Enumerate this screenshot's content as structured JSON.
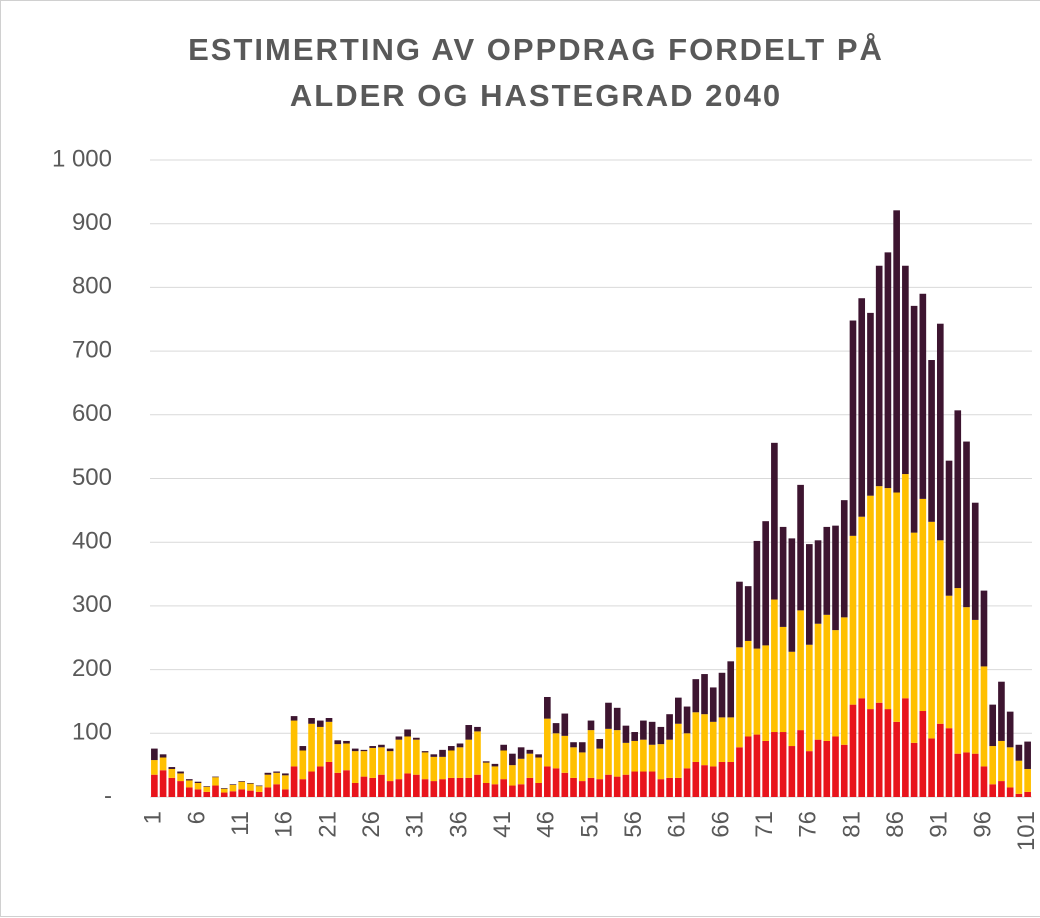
{
  "chart_data": {
    "type": "stacked_bar",
    "title": [
      "ESTIMERTING AV OPPDRAG  FORDELT PÅ",
      "ALDER OG HASTEGRAD 2040"
    ],
    "categories": [
      "1",
      null,
      null,
      null,
      null,
      "6",
      null,
      null,
      null,
      null,
      "11",
      null,
      null,
      null,
      null,
      "16",
      null,
      null,
      null,
      null,
      "21",
      null,
      null,
      null,
      null,
      "26",
      null,
      null,
      null,
      null,
      "31",
      null,
      null,
      null,
      null,
      "36",
      null,
      null,
      null,
      null,
      "41",
      null,
      null,
      null,
      null,
      "46",
      null,
      null,
      null,
      null,
      "51",
      null,
      null,
      null,
      null,
      "56",
      null,
      null,
      null,
      null,
      "61",
      null,
      null,
      null,
      null,
      "66",
      null,
      null,
      null,
      null,
      "71",
      null,
      null,
      null,
      null,
      "76",
      null,
      null,
      null,
      null,
      "81",
      null,
      null,
      null,
      null,
      "86",
      null,
      null,
      null,
      null,
      "91",
      null,
      null,
      null,
      null,
      "96",
      null,
      null,
      null,
      null,
      "101"
    ],
    "series": [
      {
        "color": "#e8141c",
        "values": [
          35,
          42,
          30,
          25,
          15,
          12,
          8,
          18,
          7,
          9,
          12,
          10,
          8,
          15,
          20,
          12,
          48,
          28,
          40,
          48,
          55,
          38,
          42,
          22,
          32,
          30,
          35,
          25,
          28,
          37,
          35,
          28,
          25,
          28,
          30,
          30,
          30,
          35,
          22,
          20,
          28,
          18,
          20,
          30,
          22,
          48,
          45,
          38,
          30,
          25,
          30,
          28,
          35,
          32,
          35,
          40,
          40,
          40,
          28,
          30,
          30,
          45,
          55,
          50,
          48,
          55,
          55,
          78,
          95,
          98,
          88,
          102,
          102,
          80,
          105,
          72,
          90,
          88,
          95,
          82,
          145,
          155,
          138,
          148,
          138,
          118,
          155,
          85,
          135,
          92,
          115,
          108,
          68,
          70,
          68,
          48,
          20,
          25,
          15,
          5,
          8
        ]
      },
      {
        "color": "#ffc000",
        "values": [
          23,
          20,
          14,
          12,
          11,
          10,
          8,
          13,
          6,
          10,
          12,
          11,
          9,
          20,
          18,
          22,
          72,
          45,
          75,
          62,
          63,
          45,
          42,
          50,
          40,
          47,
          43,
          47,
          62,
          58,
          55,
          42,
          38,
          35,
          43,
          48,
          60,
          68,
          32,
          28,
          45,
          32,
          40,
          38,
          40,
          75,
          55,
          58,
          48,
          45,
          75,
          48,
          72,
          73,
          50,
          48,
          50,
          42,
          55,
          60,
          85,
          55,
          78,
          80,
          70,
          70,
          70,
          157,
          150,
          135,
          150,
          208,
          165,
          148,
          188,
          167,
          182,
          198,
          167,
          200,
          265,
          285,
          335,
          340,
          347,
          360,
          352,
          330,
          333,
          340,
          288,
          208,
          260,
          228,
          210,
          157,
          60,
          63,
          63,
          52,
          36
        ]
      },
      {
        "color": "#3d1530",
        "values": [
          18,
          5,
          3,
          3,
          2,
          2,
          1,
          1,
          1,
          1,
          1,
          1,
          1,
          3,
          2,
          3,
          7,
          7,
          9,
          10,
          6,
          6,
          4,
          4,
          2,
          3,
          4,
          4,
          5,
          11,
          3,
          2,
          4,
          11,
          7,
          6,
          23,
          7,
          2,
          4,
          9,
          18,
          18,
          6,
          5,
          34,
          16,
          35,
          8,
          16,
          15,
          15,
          41,
          35,
          27,
          14,
          30,
          36,
          27,
          40,
          41,
          42,
          52,
          63,
          54,
          70,
          88,
          103,
          86,
          169,
          195,
          246,
          157,
          178,
          197,
          158,
          131,
          138,
          164,
          184,
          338,
          343,
          287,
          346,
          370,
          443,
          327,
          356,
          322,
          254,
          340,
          212,
          279,
          260,
          184,
          119,
          65,
          93,
          56,
          25,
          43
        ]
      }
    ],
    "ylim": [
      0,
      1000
    ],
    "yticks": [
      {
        "value": 0,
        "label": "-"
      },
      100,
      200,
      300,
      400,
      500,
      600,
      700,
      800,
      900,
      {
        "value": 1000,
        "label": "1 000"
      }
    ],
    "grid": true
  }
}
